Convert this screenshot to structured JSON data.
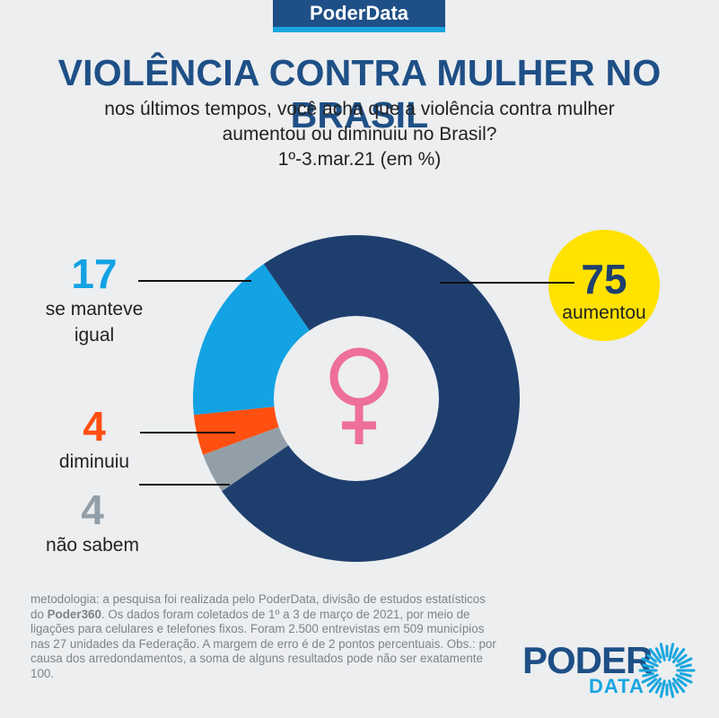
{
  "header": {
    "badge": "PoderData"
  },
  "title": "VIOLÊNCIA CONTRA MULHER NO BRASIL",
  "subtitle_line1": "nos últimos tempos, você acha que a violência contra mulher",
  "subtitle_line2": "aumentou ou diminuiu no Brasil?",
  "subtitle_line3": "1º-3.mar.21 (em %)",
  "chart_data": {
    "type": "pie",
    "variant": "donut",
    "slices": [
      {
        "label": "aumentou",
        "value": 75,
        "color": "#1e3f6e"
      },
      {
        "label": "não sabem",
        "value": 4,
        "color": "#939fa8"
      },
      {
        "label": "diminuiu",
        "value": 4,
        "color": "#ff4f11"
      },
      {
        "label": "se manteve igual",
        "value": 17,
        "color": "#13a2e3"
      }
    ],
    "center_icon": "female-symbol-icon",
    "center_icon_color": "#ee6f9a"
  },
  "labels": {
    "aumentou": {
      "num": "75",
      "text": "aumentou"
    },
    "se_manteve": {
      "num": "17",
      "line1": "se manteve",
      "line2": "igual"
    },
    "diminuiu": {
      "num": "4",
      "text": "diminuiu"
    },
    "nao_sabem": {
      "num": "4",
      "text": "não sabem"
    }
  },
  "methodology": {
    "part1": "metodologia: a pesquisa foi realizada pelo PoderData, divisão de estudos estatísticos do ",
    "brand": "Poder360",
    "part2": ". Os dados foram coletados de 1º a 3 de março de 2021, por meio de ligações para celulares e telefones fixos. Foram 2.500 entrevistas em 509 municípios nas 27 unidades da Federação. A margem de erro é de 2 pontos percentuais. Obs.: por causa dos arredondamentos, a soma de alguns resultados pode não ser exatamente 100."
  },
  "logo": {
    "line1": "PODER",
    "line2": "DATA"
  },
  "colors": {
    "brand_blue": "#1e4f86",
    "accent_cyan": "#19a6e0",
    "highlight_yellow": "#ffe200"
  }
}
